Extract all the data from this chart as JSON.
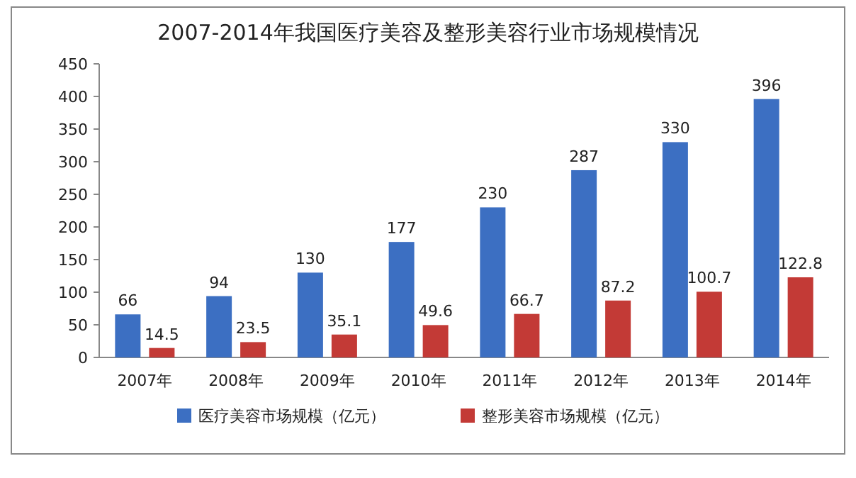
{
  "chart_data": {
    "type": "bar",
    "title": "2007-2014年我国医疗美容及整形美容行业市场规模情况",
    "categories": [
      "2007年",
      "2008年",
      "2009年",
      "2010年",
      "2011年",
      "2012年",
      "2013年",
      "2014年"
    ],
    "series": [
      {
        "name": "医疗美容市场规模（亿元）",
        "color": "#3c6fc2",
        "values": [
          66,
          94,
          130,
          177,
          230,
          287,
          330,
          396
        ]
      },
      {
        "name": "整形美容市场规模（亿元）",
        "color": "#c33a36",
        "values": [
          14.5,
          23.5,
          35.1,
          49.6,
          66.7,
          87.2,
          100.7,
          122.8
        ]
      }
    ],
    "ylim": [
      0,
      450
    ],
    "yticks": [
      0,
      50,
      100,
      150,
      200,
      250,
      300,
      350,
      400,
      450
    ],
    "data_labels": true,
    "legend": "bottom"
  }
}
